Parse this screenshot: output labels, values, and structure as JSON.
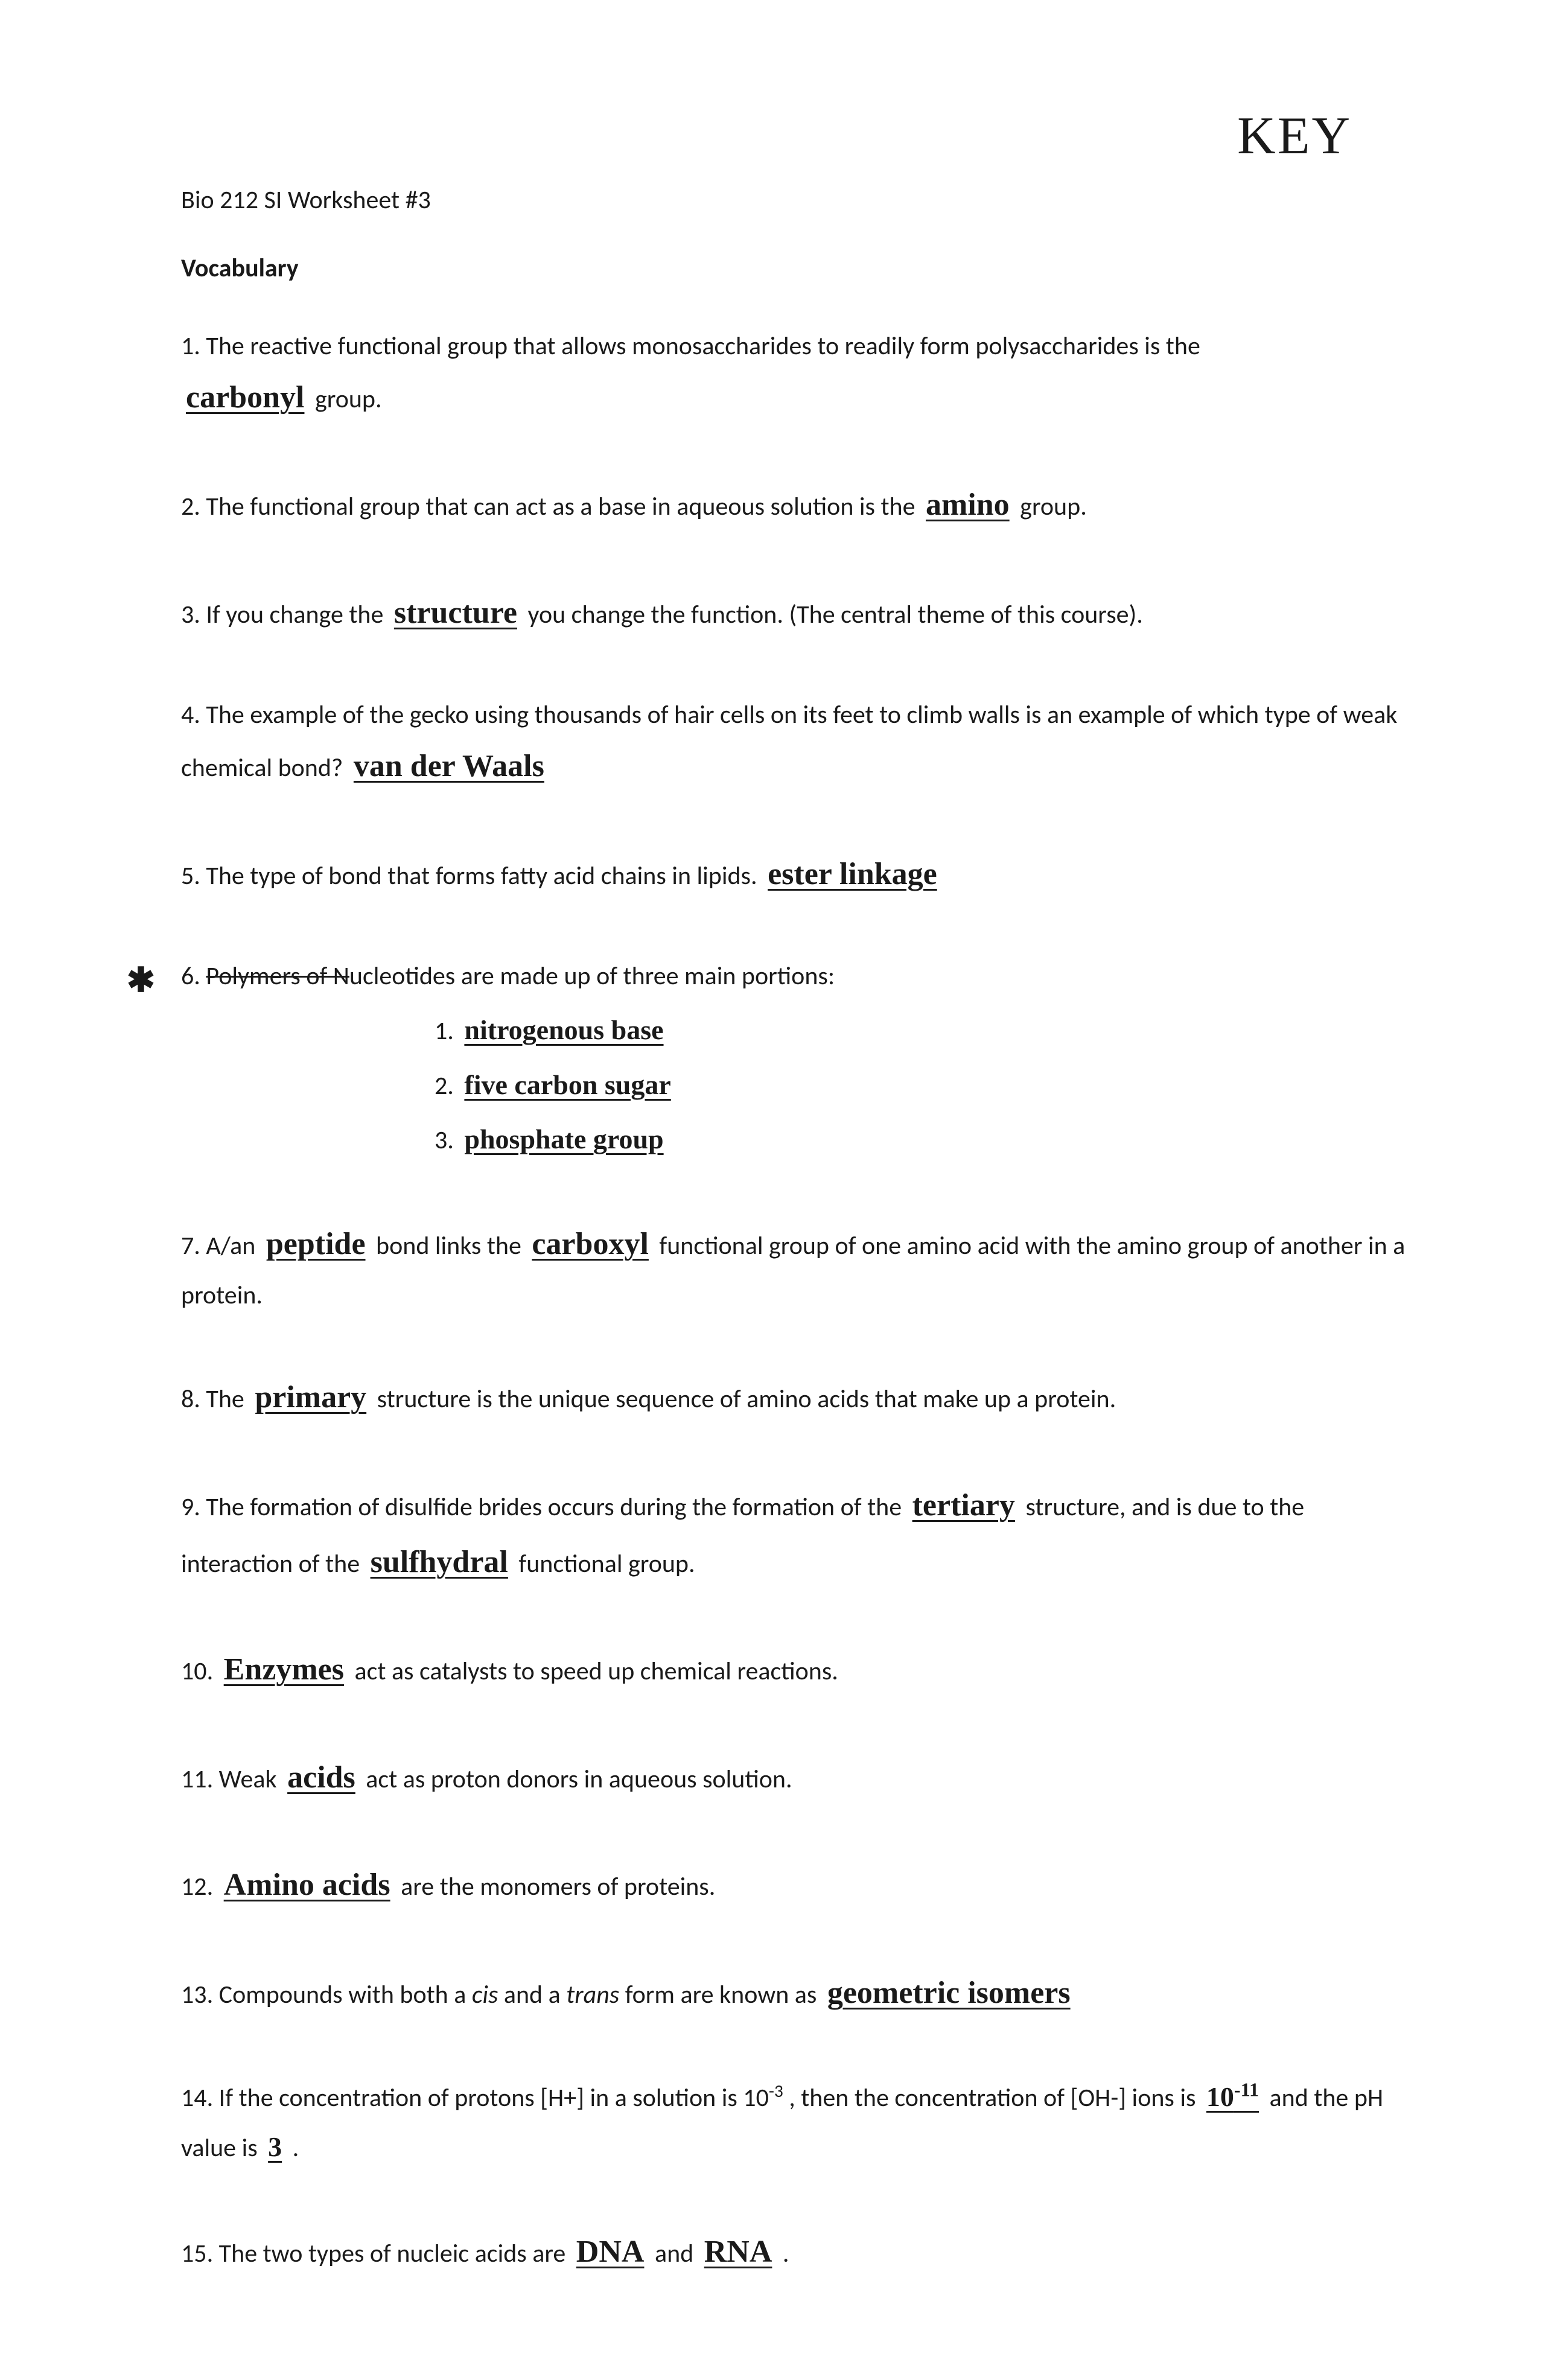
{
  "key_label": "KEY",
  "header": "Bio 212 SI Worksheet #3",
  "section_title": "Vocabulary",
  "q1_prefix": "1. The reactive functional group that allows monosaccharides to readily form polysaccharides is the ",
  "q1_answer": "carbonyl",
  "q1_suffix": " group.",
  "q2_prefix": "2. The functional group that can act as a base in aqueous solution is the ",
  "q2_answer": "amino",
  "q2_suffix": " group.",
  "q3_prefix": "3. If you change the ",
  "q3_answer": "structure",
  "q3_suffix": " you change the function. (The central theme of this course).",
  "q4_prefix": "4. The example of the gecko using thousands of hair cells on its feet to climb walls is an example of which type of weak chemical bond? ",
  "q4_answer": "van der Waals",
  "q5_prefix": "5. The type of bond that forms fatty acid chains in lipids. ",
  "q5_answer": "ester linkage",
  "q6_prefix": "6. ",
  "q6_strike": "Polymers of N",
  "q6_suffix": "ucleotides are made up of three main portions:",
  "q6_sub1_num": "1. ",
  "q6_sub1": "nitrogenous base",
  "q6_sub2_num": "2. ",
  "q6_sub2": "five carbon sugar",
  "q6_sub3_num": "3. ",
  "q6_sub3": "phosphate group",
  "q7_prefix": "7. A/an ",
  "q7_answer1": "peptide",
  "q7_mid": " bond links the ",
  "q7_answer2": "carboxyl",
  "q7_suffix": " functional group of one amino acid with the amino group of another in a protein.",
  "q8_prefix": "8. The ",
  "q8_answer": "primary",
  "q8_suffix": " structure is the unique sequence of amino acids that make up a protein.",
  "q9_prefix": "9. The formation of disulfide brides occurs during the formation of the ",
  "q9_answer1": "tertiary",
  "q9_mid": " structure, and is due to the interaction of the ",
  "q9_answer2": "sulfhydral",
  "q9_suffix": " functional group.",
  "q10_prefix": "10. ",
  "q10_answer": "Enzymes",
  "q10_suffix": " act as catalysts to speed up chemical reactions.",
  "q11_prefix": "11. Weak ",
  "q11_answer": "acids",
  "q11_suffix": " act as proton donors in aqueous solution.",
  "q12_prefix": "12. ",
  "q12_answer": "Amino acids",
  "q12_suffix": " are the monomers of proteins.",
  "q13_prefix": "13. Compounds with both a ",
  "q13_cis": "cis",
  "q13_mid1": " and a ",
  "q13_trans": "trans",
  "q13_mid2": " form are known as ",
  "q13_answer": "geometric isomers",
  "q14_prefix": "14. If the concentration of protons [H+] in a solution is 10",
  "q14_exp1": "-3",
  "q14_mid1": ", then the concentration of [OH-] ions is ",
  "q14_answer1_base": "10",
  "q14_answer1_exp": "-11",
  "q14_mid2": " and the pH value is ",
  "q14_answer2": "3",
  "q14_suffix": ".",
  "q15_prefix": "15. The two types of nucleic acids are ",
  "q15_answer1": "DNA",
  "q15_mid": " and ",
  "q15_answer2": "RNA",
  "q15_suffix": "."
}
